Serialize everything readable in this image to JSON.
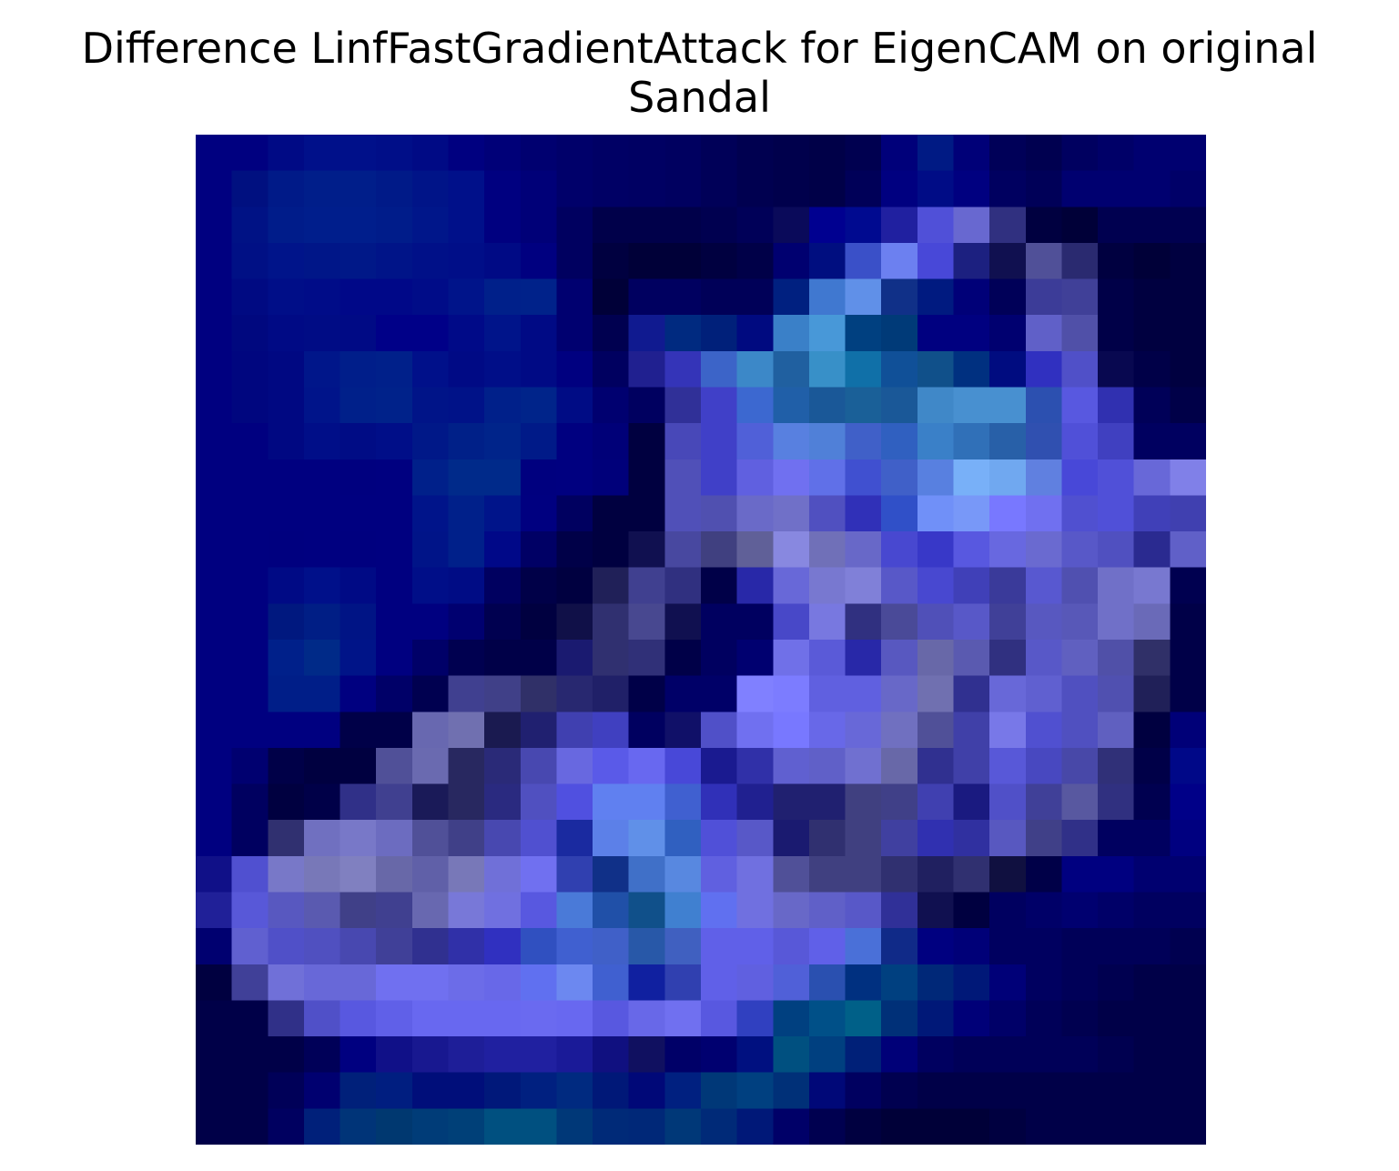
{
  "chart_data": {
    "type": "heatmap",
    "title": "Difference LinfFastGradientAttack for EigenCAM on original",
    "subtitle": "Sandal",
    "xlabel": "",
    "ylabel": "",
    "axes_visible": false,
    "grid": false,
    "colormap_note_colors": {
      "dark": "#000040",
      "mid": "#1f2a9c",
      "light": "#7a7cff",
      "teal": "#1070a8"
    },
    "rows": 28,
    "cols": 28,
    "cells": [
      [
        "#000080",
        "#000080",
        "#000a85",
        "#00108a",
        "#00108a",
        "#000e88",
        "#000a85",
        "#000080",
        "#000078",
        "#000070",
        "#00006a",
        "#000065",
        "#000063",
        "#000060",
        "#000058",
        "#000050",
        "#00004c",
        "#000048",
        "#000050",
        "#00007a",
        "#001a84",
        "#000078",
        "#000058",
        "#000050",
        "#000060",
        "#000068",
        "#000070",
        "#000070"
      ],
      [
        "#000080",
        "#001080",
        "#001a88",
        "#001e8a",
        "#001e8a",
        "#001a88",
        "#001488",
        "#00108a",
        "#000080",
        "#000078",
        "#00006a",
        "#000065",
        "#000063",
        "#000060",
        "#000058",
        "#000050",
        "#00004c",
        "#000048",
        "#000058",
        "#000080",
        "#000c86",
        "#000080",
        "#000060",
        "#000058",
        "#000070",
        "#000070",
        "#000070",
        "#000068"
      ],
      [
        "#000080",
        "#001285",
        "#001c8a",
        "#001e8c",
        "#001e8c",
        "#001c8a",
        "#00168a",
        "#00108a",
        "#000080",
        "#000078",
        "#000060",
        "#00004a",
        "#00004a",
        "#00004a",
        "#000050",
        "#000058",
        "#0a0a5a",
        "#000090",
        "#000a90",
        "#2020a0",
        "#5050d8",
        "#6868d0",
        "#303080",
        "#000040",
        "#000038",
        "#000050",
        "#000050",
        "#000050"
      ],
      [
        "#000080",
        "#001085",
        "#00148a",
        "#001688",
        "#001888",
        "#001488",
        "#001088",
        "#000e88",
        "#000a85",
        "#000080",
        "#000060",
        "#000040",
        "#000038",
        "#000038",
        "#000040",
        "#000048",
        "#000070",
        "#000e80",
        "#3a50c8",
        "#6c80f0",
        "#4848d8",
        "#1c2080",
        "#101050",
        "#505098",
        "#2a2a70",
        "#000040",
        "#000038",
        "#000040"
      ],
      [
        "#000080",
        "#000a82",
        "#000e88",
        "#000c88",
        "#000888",
        "#000888",
        "#000c88",
        "#00148a",
        "#00208a",
        "#00228a",
        "#000070",
        "#000038",
        "#000060",
        "#000060",
        "#000058",
        "#000058",
        "#002080",
        "#4078d0",
        "#6090e8",
        "#103088",
        "#001a80",
        "#000078",
        "#000058",
        "#3c3c98",
        "#404098",
        "#000048",
        "#000040",
        "#000040"
      ],
      [
        "#000080",
        "#00087f",
        "#000a85",
        "#000c85",
        "#000a85",
        "#000088",
        "#000088",
        "#000a88",
        "#00148a",
        "#000a85",
        "#000070",
        "#000050",
        "#101a90",
        "#002a80",
        "#00207a",
        "#000a80",
        "#3a80c8",
        "#4898d8",
        "#004080",
        "#003a78",
        "#000080",
        "#000080",
        "#000070",
        "#6060c8",
        "#5050a8",
        "#000048",
        "#000040",
        "#000040"
      ],
      [
        "#000080",
        "#00067f",
        "#000882",
        "#00168a",
        "#001e8a",
        "#00208a",
        "#00108a",
        "#000a85",
        "#000e88",
        "#000a85",
        "#000080",
        "#000060",
        "#202090",
        "#3434b8",
        "#3c64c8",
        "#3c88c8",
        "#2060a0",
        "#3890c8",
        "#1070a8",
        "#105098",
        "#10508a",
        "#003080",
        "#000c80",
        "#3030c0",
        "#5050c8",
        "#080850",
        "#000048",
        "#000040"
      ],
      [
        "#000080",
        "#00067f",
        "#000882",
        "#00148a",
        "#00208a",
        "#00228a",
        "#001488",
        "#001288",
        "#00208a",
        "#00248a",
        "#000c85",
        "#000070",
        "#000060",
        "#303098",
        "#4040c8",
        "#3c68d0",
        "#205fa8",
        "#1a5898",
        "#1a6098",
        "#1a5898",
        "#4088c8",
        "#4890d0",
        "#4890d0",
        "#2c50b0",
        "#5858e0",
        "#3030b0",
        "#000058",
        "#000048"
      ],
      [
        "#000080",
        "#000080",
        "#000882",
        "#000e88",
        "#000c85",
        "#000e88",
        "#001888",
        "#002088",
        "#00248a",
        "#001a88",
        "#000080",
        "#000078",
        "#000040",
        "#4848b8",
        "#4040c8",
        "#5060d8",
        "#5880e0",
        "#5080d8",
        "#4060c8",
        "#3060c0",
        "#3a80c8",
        "#3070b8",
        "#2860a8",
        "#3050b0",
        "#5050d8",
        "#4040c0",
        "#000060",
        "#000060"
      ],
      [
        "#000080",
        "#000080",
        "#000080",
        "#000080",
        "#00007f",
        "#000080",
        "#00208a",
        "#002a8a",
        "#002a8a",
        "#00007f",
        "#000080",
        "#00007a",
        "#000040",
        "#5050b8",
        "#4040c8",
        "#6060e0",
        "#7070f0",
        "#6070e8",
        "#4050d0",
        "#4060c8",
        "#5880e0",
        "#78b0f8",
        "#70a8f0",
        "#6080e0",
        "#4848d8",
        "#5050d8",
        "#6868d8",
        "#8080e8"
      ],
      [
        "#000080",
        "#000080",
        "#000080",
        "#000080",
        "#000080",
        "#000080",
        "#00148a",
        "#00208a",
        "#00148a",
        "#000080",
        "#000060",
        "#000040",
        "#000040",
        "#5050b8",
        "#5050b0",
        "#6a6ac8",
        "#7070c8",
        "#5050c0",
        "#3030b8",
        "#3050c8",
        "#7090f8",
        "#7898f8",
        "#7878ff",
        "#7070f0",
        "#5050d0",
        "#5050d8",
        "#4040b8",
        "#4040b0"
      ],
      [
        "#000080",
        "#000080",
        "#00007f",
        "#000080",
        "#00007f",
        "#000080",
        "#001488",
        "#00208a",
        "#000888",
        "#000065",
        "#000048",
        "#000040",
        "#101050",
        "#4848a0",
        "#404080",
        "#606098",
        "#8888e0",
        "#7070b8",
        "#6868c8",
        "#4848d0",
        "#3838c8",
        "#5858e0",
        "#6868e0",
        "#6a6ad0",
        "#5858c8",
        "#5050c0",
        "#2a2a90",
        "#6060c8"
      ],
      [
        "#000080",
        "#000080",
        "#000a85",
        "#00108a",
        "#000a85",
        "#000080",
        "#000e88",
        "#000c85",
        "#000060",
        "#000048",
        "#000040",
        "#202058",
        "#404090",
        "#303080",
        "#000048",
        "#2828a8",
        "#6868d8",
        "#7878d0",
        "#8080d8",
        "#5858c8",
        "#4848d0",
        "#4040b8",
        "#3a3a9a",
        "#5858d0",
        "#5050b0",
        "#7070c8",
        "#7878d0",
        "#000050"
      ],
      [
        "#000080",
        "#000080",
        "#00187f",
        "#001e85",
        "#001485",
        "#000080",
        "#000080",
        "#000070",
        "#000050",
        "#000040",
        "#101048",
        "#303070",
        "#484890",
        "#101050",
        "#000060",
        "#000060",
        "#4848c8",
        "#7878e0",
        "#303080",
        "#4a4a98",
        "#5050b8",
        "#5858c8",
        "#404098",
        "#5858c0",
        "#5858b8",
        "#7070c8",
        "#6a6ab8",
        "#000048"
      ],
      [
        "#000080",
        "#000080",
        "#00208a",
        "#002a88",
        "#001488",
        "#000080",
        "#000068",
        "#000050",
        "#000048",
        "#000048",
        "#1a1a70",
        "#303070",
        "#303078",
        "#000048",
        "#000060",
        "#000070",
        "#7070e8",
        "#5a5ad8",
        "#2828a8",
        "#5858c0",
        "#6868a8",
        "#5a5ab0",
        "#303080",
        "#5858c8",
        "#6060c0",
        "#5050a8",
        "#303068",
        "#000048"
      ],
      [
        "#000080",
        "#000080",
        "#001e88",
        "#001e88",
        "#000080",
        "#000068",
        "#000050",
        "#404090",
        "#404088",
        "#303068",
        "#282870",
        "#202068",
        "#000048",
        "#000068",
        "#000068",
        "#8080ff",
        "#7c7cff",
        "#6060e0",
        "#6060e0",
        "#6868c8",
        "#7070b0",
        "#303090",
        "#6868d8",
        "#6060d0",
        "#5050c0",
        "#5050b0",
        "#202058",
        "#000048"
      ],
      [
        "#000080",
        "#000080",
        "#000080",
        "#000080",
        "#000048",
        "#000048",
        "#6868b0",
        "#7070b0",
        "#1a1a50",
        "#202070",
        "#4040b0",
        "#4040c0",
        "#000060",
        "#101068",
        "#5050c8",
        "#7070f0",
        "#7878ff",
        "#6868e8",
        "#6868d8",
        "#7070c0",
        "#505098",
        "#4040a8",
        "#7878e8",
        "#5050d0",
        "#5050c0",
        "#6060c0",
        "#000040",
        "#000078"
      ],
      [
        "#000080",
        "#000070",
        "#000048",
        "#000040",
        "#000040",
        "#505098",
        "#6a6ab0",
        "#282860",
        "#2a2a78",
        "#4848b0",
        "#6868e0",
        "#5a5ae8",
        "#6868f0",
        "#4848d8",
        "#1a1a90",
        "#3030a8",
        "#6060d0",
        "#6060c8",
        "#7070d0",
        "#6868a8",
        "#303090",
        "#4040a8",
        "#5858d8",
        "#4848c0",
        "#4848a8",
        "#303078",
        "#000048",
        "#000888"
      ],
      [
        "#000080",
        "#000060",
        "#000040",
        "#000048",
        "#303088",
        "#404090",
        "#1a1a58",
        "#282860",
        "#2a2a80",
        "#5050c0",
        "#5050e0",
        "#6080f0",
        "#6080f0",
        "#4060d0",
        "#3030b8",
        "#202090",
        "#202070",
        "#202070",
        "#404080",
        "#404088",
        "#4040b0",
        "#1a1a80",
        "#5050c8",
        "#404098",
        "#5858a0",
        "#303080",
        "#000050",
        "#000088"
      ],
      [
        "#000080",
        "#000060",
        "#303070",
        "#7070c0",
        "#7878c8",
        "#6c6cc0",
        "#505098",
        "#404088",
        "#4848b0",
        "#5050d0",
        "#1a2aa0",
        "#5c80e8",
        "#6090e8",
        "#3060c0",
        "#5050d8",
        "#5858c8",
        "#1a1a70",
        "#303070",
        "#404080",
        "#4040a0",
        "#3030b0",
        "#3030a0",
        "#5858c0",
        "#404088",
        "#303088",
        "#000060",
        "#000060",
        "#000080"
      ],
      [
        "#101088",
        "#5050d0",
        "#7878c8",
        "#7878b8",
        "#8080c0",
        "#6868a8",
        "#6060a8",
        "#7878b8",
        "#7070d8",
        "#7070f0",
        "#3040b0",
        "#103088",
        "#4070c8",
        "#5888e0",
        "#6060e0",
        "#7070e0",
        "#505098",
        "#404080",
        "#404080",
        "#303070",
        "#202060",
        "#303070",
        "#101040",
        "#000048",
        "#000080",
        "#000080",
        "#000070",
        "#000070"
      ],
      [
        "#202098",
        "#5858d8",
        "#5858c0",
        "#5a5ab0",
        "#404088",
        "#404090",
        "#6868b0",
        "#7878d8",
        "#7070e0",
        "#5858e0",
        "#4a7ad8",
        "#2050a8",
        "#10508a",
        "#4080d0",
        "#6070f0",
        "#7070e0",
        "#6868c8",
        "#6060c8",
        "#5858c8",
        "#303098",
        "#101050",
        "#000040",
        "#000060",
        "#000068",
        "#000070",
        "#000068",
        "#000060",
        "#000060"
      ],
      [
        "#000070",
        "#6060d0",
        "#5050c8",
        "#5050c0",
        "#4848b0",
        "#404098",
        "#303090",
        "#3030a8",
        "#3030c0",
        "#3050c0",
        "#4060d0",
        "#4060c8",
        "#2858a8",
        "#4060c0",
        "#6060e8",
        "#6060e8",
        "#5858d8",
        "#6060e8",
        "#4a70d8",
        "#102a88",
        "#000080",
        "#000078",
        "#000060",
        "#000060",
        "#000058",
        "#000058",
        "#000058",
        "#000050"
      ],
      [
        "#000040",
        "#404098",
        "#7070d8",
        "#6868d8",
        "#6868d8",
        "#7070f0",
        "#7070f0",
        "#6c6ce8",
        "#6868e8",
        "#6070f0",
        "#6c88f0",
        "#4060d0",
        "#1020a0",
        "#3040b0",
        "#6060e8",
        "#6060e0",
        "#5060d8",
        "#2a50b0",
        "#003080",
        "#004080",
        "#002878",
        "#001878",
        "#000078",
        "#000060",
        "#000058",
        "#000050",
        "#000048",
        "#000048"
      ],
      [
        "#000048",
        "#000048",
        "#303088",
        "#5050c8",
        "#5858e0",
        "#6060e8",
        "#6868f0",
        "#6868f0",
        "#6868f0",
        "#6a6af0",
        "#6868f0",
        "#5858e0",
        "#6868e8",
        "#7070f0",
        "#5858e0",
        "#3040c0",
        "#004080",
        "#005088",
        "#006088",
        "#003078",
        "#001878",
        "#000078",
        "#000068",
        "#000058",
        "#000050",
        "#000048",
        "#000048",
        "#000048"
      ],
      [
        "#000048",
        "#000048",
        "#000048",
        "#000058",
        "#000080",
        "#101088",
        "#181890",
        "#1e1e98",
        "#2020a0",
        "#2020a0",
        "#1a1a98",
        "#101080",
        "#101060",
        "#000068",
        "#000070",
        "#001080",
        "#005080",
        "#004080",
        "#002078",
        "#000078",
        "#000060",
        "#000058",
        "#000058",
        "#000058",
        "#000058",
        "#000050",
        "#000048",
        "#000048"
      ],
      [
        "#000048",
        "#000048",
        "#000058",
        "#000070",
        "#00207a",
        "#001e80",
        "#000e7a",
        "#000e7a",
        "#00187a",
        "#002080",
        "#002a80",
        "#001878",
        "#000878",
        "#002080",
        "#003878",
        "#004080",
        "#003078",
        "#000878",
        "#000060",
        "#000050",
        "#000048",
        "#000048",
        "#000048",
        "#000048",
        "#000048",
        "#000048",
        "#000048",
        "#000048"
      ],
      [
        "#000048",
        "#000048",
        "#000060",
        "#00207a",
        "#003478",
        "#003870",
        "#003c78",
        "#004078",
        "#005080",
        "#005080",
        "#003878",
        "#002a78",
        "#002878",
        "#003878",
        "#002a78",
        "#001878",
        "#000068",
        "#000050",
        "#000040",
        "#000038",
        "#000038",
        "#000038",
        "#000040",
        "#000048",
        "#000048",
        "#000048",
        "#000048",
        "#000048"
      ]
    ]
  }
}
